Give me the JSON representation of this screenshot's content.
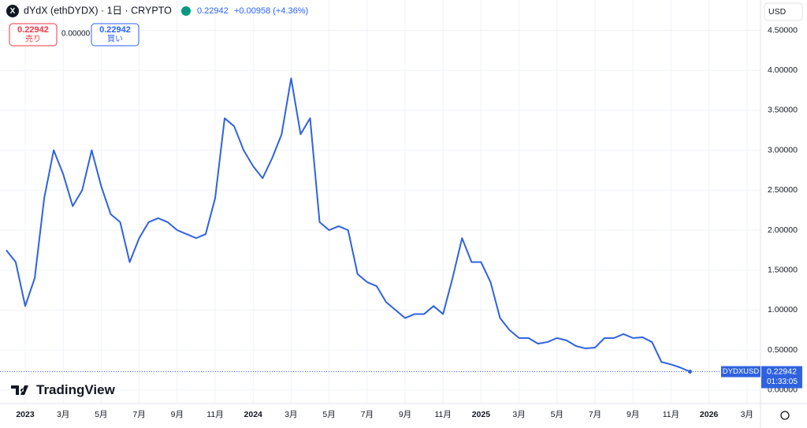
{
  "header": {
    "title": "dYdX (ethDYDX) · 1日 · CRYPTO",
    "price": "0.22942",
    "change": "+0.00958 (+4.36%)",
    "sell_price": "0.22942",
    "sell_label": "売り",
    "spread": "0.00000",
    "buy_price": "0.22942",
    "buy_label": "買い",
    "currency": "USD",
    "brand": "TradingView"
  },
  "price_tag": {
    "symbol": "DYDXUSD",
    "price": "0.22942",
    "countdown": "01:33:05"
  },
  "chart_data": {
    "type": "line",
    "categories": [
      null,
      null,
      "2023",
      null,
      null,
      null,
      "3月",
      null,
      null,
      null,
      "5月",
      null,
      null,
      null,
      "7月",
      null,
      null,
      null,
      "9月",
      null,
      null,
      null,
      "11月",
      null,
      null,
      null,
      "2024",
      null,
      null,
      null,
      "3月",
      null,
      null,
      null,
      "5月",
      null,
      null,
      null,
      "7月",
      null,
      null,
      null,
      "9月",
      null,
      null,
      null,
      "11月",
      null,
      null,
      null,
      "2025",
      null,
      null,
      null,
      "3月",
      null,
      null,
      null,
      "5月",
      null,
      null,
      null,
      "7月",
      null,
      null,
      null,
      "9月",
      null,
      null,
      null,
      "11月",
      null,
      null,
      null,
      "2026",
      null,
      null,
      null,
      "3月",
      null
    ],
    "series": [
      {
        "name": "DYDXUSD",
        "color": "#2f62e0",
        "values": [
          1.75,
          1.6,
          1.05,
          1.4,
          2.4,
          3.0,
          2.7,
          2.3,
          2.5,
          3.0,
          2.55,
          2.2,
          2.1,
          1.6,
          1.9,
          2.1,
          2.15,
          2.1,
          2.0,
          1.95,
          1.9,
          1.95,
          2.4,
          3.4,
          3.3,
          3.0,
          2.8,
          2.65,
          2.9,
          3.2,
          3.9,
          3.2,
          3.4,
          2.1,
          2.0,
          2.05,
          2.0,
          1.45,
          1.35,
          1.3,
          1.1,
          1.0,
          0.9,
          0.95,
          0.95,
          1.05,
          0.95,
          1.4,
          1.9,
          1.6,
          1.6,
          1.35,
          0.9,
          0.75,
          0.65,
          0.65,
          0.58,
          0.6,
          0.65,
          0.62,
          0.55,
          0.52,
          0.53,
          0.65,
          0.65,
          0.7,
          0.65,
          0.66,
          0.6,
          0.35,
          0.32,
          0.28,
          0.22942,
          null,
          null,
          null,
          null,
          null,
          null,
          null
        ]
      }
    ],
    "ylim": [
      -0.17,
      4.88
    ],
    "yticks": [
      {
        "value": 0,
        "label": "0.00000"
      },
      {
        "value": 0.5,
        "label": "0.50000"
      },
      {
        "value": 1,
        "label": "1.00000"
      },
      {
        "value": 1.5,
        "label": "1.50000"
      },
      {
        "value": 2,
        "label": "2.00000"
      },
      {
        "value": 2.5,
        "label": "2.50000"
      },
      {
        "value": 3,
        "label": "3.00000"
      },
      {
        "value": 3.5,
        "label": "3.50000"
      },
      {
        "value": 4,
        "label": "4.00000"
      },
      {
        "value": 4.5,
        "label": "4.50000"
      }
    ],
    "grid": true
  }
}
